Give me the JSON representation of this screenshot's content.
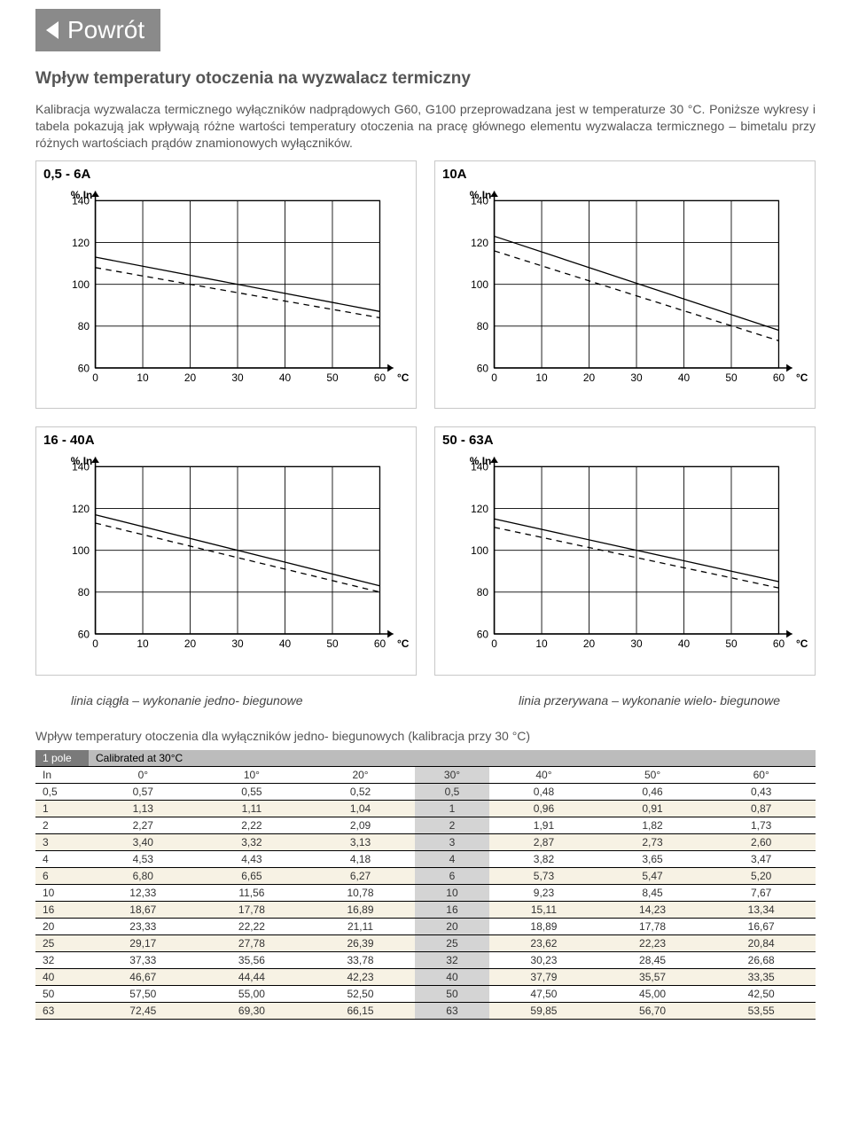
{
  "back_button": {
    "label": "Powrót"
  },
  "heading": "Wpływ temperatury otoczenia na wyzwalacz termiczny",
  "para1": "Kalibracja wyzwalacza termicznego wyłączników nadprądowych G60, G100 przeprowadzana jest w temperaturze 30 °C. Poniższe wykresy i tabela pokazują jak wpływają różne wartości temperatury otoczenia na pracę głównego elementu wyzwalacza termicznego – bimetalu przy różnych wartościach prądów znamionowych wyłączników.",
  "charts": [
    {
      "title": "0,5 - 6A",
      "ylabel": "% In",
      "xlabel": "°C",
      "xlim": [
        0,
        60
      ],
      "ylim": [
        60,
        140
      ],
      "xticks": [
        0,
        10,
        20,
        30,
        40,
        50,
        60
      ],
      "yticks": [
        60,
        80,
        100,
        120,
        140
      ],
      "series": [
        {
          "dash": "none",
          "color": "#000000",
          "width": 1.2,
          "points": [
            [
              0,
              113
            ],
            [
              60,
              87
            ]
          ]
        },
        {
          "dash": "dashed",
          "color": "#000000",
          "width": 1.2,
          "points": [
            [
              0,
              108
            ],
            [
              60,
              84
            ]
          ]
        }
      ],
      "grid_color": "#000000",
      "bg": "#ffffff",
      "label_fontsize": 11
    },
    {
      "title": "10A",
      "ylabel": "% In",
      "xlabel": "°C",
      "xlim": [
        0,
        60
      ],
      "ylim": [
        60,
        140
      ],
      "xticks": [
        0,
        10,
        20,
        30,
        40,
        50,
        60
      ],
      "yticks": [
        60,
        80,
        100,
        120,
        140
      ],
      "series": [
        {
          "dash": "none",
          "color": "#000000",
          "width": 1.2,
          "points": [
            [
              0,
              123
            ],
            [
              60,
              78
            ]
          ]
        },
        {
          "dash": "dashed",
          "color": "#000000",
          "width": 1.2,
          "points": [
            [
              0,
              116
            ],
            [
              60,
              73
            ]
          ]
        }
      ],
      "grid_color": "#000000",
      "bg": "#ffffff",
      "label_fontsize": 11
    },
    {
      "title": "16 - 40A",
      "ylabel": "% In",
      "xlabel": "°C",
      "xlim": [
        0,
        60
      ],
      "ylim": [
        60,
        140
      ],
      "xticks": [
        0,
        10,
        20,
        30,
        40,
        50,
        60
      ],
      "yticks": [
        60,
        80,
        100,
        120,
        140
      ],
      "series": [
        {
          "dash": "none",
          "color": "#000000",
          "width": 1.2,
          "points": [
            [
              0,
              117
            ],
            [
              60,
              83
            ]
          ]
        },
        {
          "dash": "dashed",
          "color": "#000000",
          "width": 1.2,
          "points": [
            [
              0,
              113
            ],
            [
              60,
              80
            ]
          ]
        }
      ],
      "grid_color": "#000000",
      "bg": "#ffffff",
      "label_fontsize": 11
    },
    {
      "title": "50 - 63A",
      "ylabel": "% In",
      "xlabel": "°C",
      "xlim": [
        0,
        60
      ],
      "ylim": [
        60,
        140
      ],
      "xticks": [
        0,
        10,
        20,
        30,
        40,
        50,
        60
      ],
      "yticks": [
        60,
        80,
        100,
        120,
        140
      ],
      "series": [
        {
          "dash": "none",
          "color": "#000000",
          "width": 1.2,
          "points": [
            [
              0,
              115
            ],
            [
              60,
              85
            ]
          ]
        },
        {
          "dash": "dashed",
          "color": "#000000",
          "width": 1.2,
          "points": [
            [
              0,
              111
            ],
            [
              60,
              82
            ]
          ]
        }
      ],
      "grid_color": "#000000",
      "bg": "#ffffff",
      "label_fontsize": 11
    }
  ],
  "legend": {
    "solid": "linia ciągła – wykonanie jedno- biegunowe",
    "dashed": "linia przerywana – wykonanie wielo- biegunowe"
  },
  "table": {
    "caption": "Wpływ temperatury otoczenia dla wyłączników jedno- biegunowych (kalibracja przy 30 °C)",
    "header_left": "1 pole",
    "header_right": "Calibrated at 30°C",
    "col_label": "In",
    "columns": [
      "0°",
      "10°",
      "20°",
      "30°",
      "40°",
      "50°",
      "60°"
    ],
    "shade_col_index": 3,
    "row_stripe_colors": {
      "odd": "#ffffff",
      "even": "#f7f2e4"
    },
    "rows": [
      {
        "in": "0,5",
        "vals": [
          "0,57",
          "0,55",
          "0,52",
          "0,5",
          "0,48",
          "0,46",
          "0,43"
        ]
      },
      {
        "in": "1",
        "vals": [
          "1,13",
          "1,11",
          "1,04",
          "1",
          "0,96",
          "0,91",
          "0,87"
        ]
      },
      {
        "in": "2",
        "vals": [
          "2,27",
          "2,22",
          "2,09",
          "2",
          "1,91",
          "1,82",
          "1,73"
        ]
      },
      {
        "in": "3",
        "vals": [
          "3,40",
          "3,32",
          "3,13",
          "3",
          "2,87",
          "2,73",
          "2,60"
        ]
      },
      {
        "in": "4",
        "vals": [
          "4,53",
          "4,43",
          "4,18",
          "4",
          "3,82",
          "3,65",
          "3,47"
        ]
      },
      {
        "in": "6",
        "vals": [
          "6,80",
          "6,65",
          "6,27",
          "6",
          "5,73",
          "5,47",
          "5,20"
        ]
      },
      {
        "in": "10",
        "vals": [
          "12,33",
          "11,56",
          "10,78",
          "10",
          "9,23",
          "8,45",
          "7,67"
        ]
      },
      {
        "in": "16",
        "vals": [
          "18,67",
          "17,78",
          "16,89",
          "16",
          "15,11",
          "14,23",
          "13,34"
        ]
      },
      {
        "in": "20",
        "vals": [
          "23,33",
          "22,22",
          "21,11",
          "20",
          "18,89",
          "17,78",
          "16,67"
        ]
      },
      {
        "in": "25",
        "vals": [
          "29,17",
          "27,78",
          "26,39",
          "25",
          "23,62",
          "22,23",
          "20,84"
        ]
      },
      {
        "in": "32",
        "vals": [
          "37,33",
          "35,56",
          "33,78",
          "32",
          "30,23",
          "28,45",
          "26,68"
        ]
      },
      {
        "in": "40",
        "vals": [
          "46,67",
          "44,44",
          "42,23",
          "40",
          "37,79",
          "35,57",
          "33,35"
        ]
      },
      {
        "in": "50",
        "vals": [
          "57,50",
          "55,00",
          "52,50",
          "50",
          "47,50",
          "45,00",
          "42,50"
        ]
      },
      {
        "in": "63",
        "vals": [
          "72,45",
          "69,30",
          "66,15",
          "63",
          "59,85",
          "56,70",
          "53,55"
        ]
      }
    ]
  }
}
